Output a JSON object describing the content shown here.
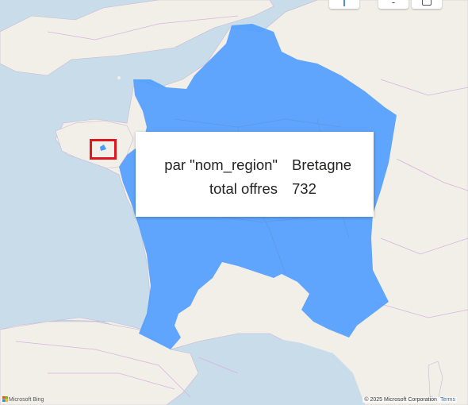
{
  "map": {
    "provider": "Microsoft Bing",
    "attribution_text": "© 2025 Microsoft Corporation",
    "terms_label": "Terms",
    "highlight_color": "#4a9bff",
    "selection_color": "#e0161e",
    "sea_color": "#c8dcea",
    "land_color": "#f2efe9"
  },
  "tooltip": {
    "rows": [
      {
        "key": "par \"nom_region\"",
        "value": "Bretagne"
      },
      {
        "key": "total offres",
        "value": "732"
      }
    ]
  },
  "controls": {
    "zoom_in_icon": "plus-icon",
    "zoom_out_icon": "minus-icon",
    "zoom_out_label": "-",
    "map_style_icon": "layers-icon"
  }
}
